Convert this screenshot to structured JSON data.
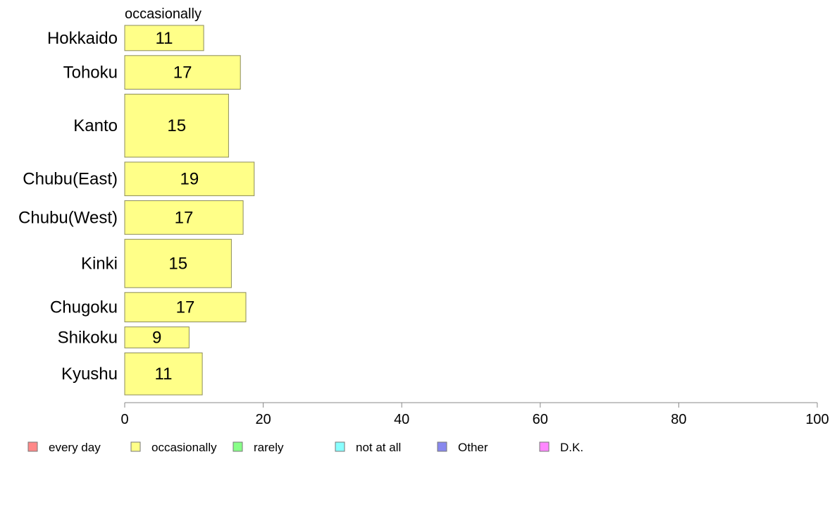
{
  "chart_data": {
    "type": "bar",
    "orientation": "horizontal",
    "title": "",
    "series_title": "occasionally",
    "categories": [
      "Hokkaido",
      "Tohoku",
      "Kanto",
      "Chubu(East)",
      "Chubu(West)",
      "Kinki",
      "Chugoku",
      "Shikoku",
      "Kyushu"
    ],
    "series": [
      {
        "name": "occasionally",
        "color": "#ffff88",
        "values": [
          11,
          17,
          15,
          19,
          17,
          15,
          17,
          9,
          11
        ],
        "plotted_values": [
          11.4,
          16.7,
          15.0,
          18.7,
          17.1,
          15.4,
          17.5,
          9.3,
          11.2
        ]
      }
    ],
    "relative_bar_widths": [
      0.6,
      0.8,
      1.5,
      0.8,
      0.8,
      1.15,
      0.7,
      0.5,
      1.0
    ],
    "xlim": [
      0,
      100
    ],
    "xticks": [
      "0",
      "20",
      "40",
      "60",
      "80",
      "100"
    ],
    "grid": false,
    "legend_position": "bottom",
    "legend": [
      {
        "label": "every day",
        "color": "#ff8888"
      },
      {
        "label": "occasionally",
        "color": "#ffff88"
      },
      {
        "label": "rarely",
        "color": "#88ff88"
      },
      {
        "label": "not at all",
        "color": "#88ffff"
      },
      {
        "label": "Other",
        "color": "#8888ee"
      },
      {
        "label": "D.K.",
        "color": "#ff88ff"
      }
    ]
  }
}
